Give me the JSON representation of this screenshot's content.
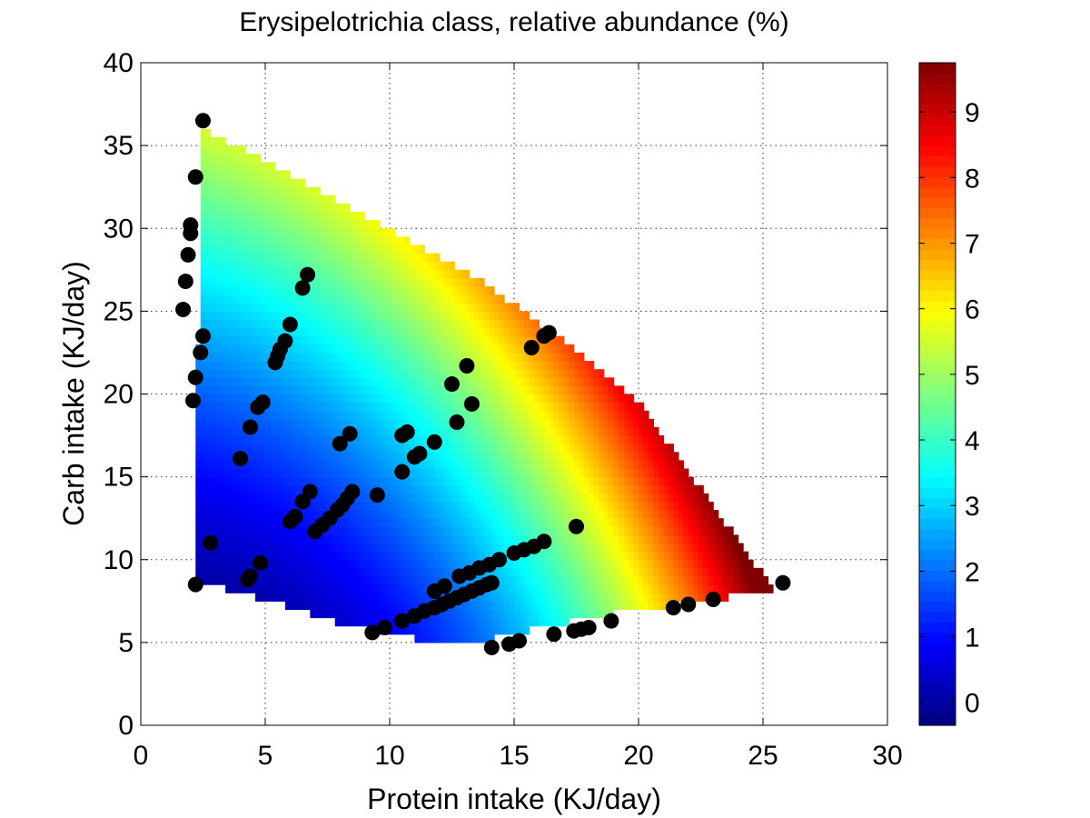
{
  "chart_data": {
    "type": "heatmap",
    "title": "Erysipelotrichia class, relative abundance (%)",
    "xlabel": "Protein intake (KJ/day)",
    "ylabel": "Carb intake (KJ/day)",
    "xlim": [
      0,
      30
    ],
    "ylim": [
      0,
      40
    ],
    "xticks": [
      0,
      5,
      10,
      15,
      20,
      25,
      30
    ],
    "yticks": [
      0,
      5,
      10,
      15,
      20,
      25,
      30,
      35,
      40
    ],
    "grid": true,
    "colormap": "jet",
    "colorbar": {
      "range": [
        -0.35,
        9.75
      ],
      "ticks": [
        0,
        1,
        2,
        3,
        4,
        5,
        6,
        7,
        8,
        9
      ]
    },
    "surface_region": [
      [
        2.2,
        8.7
      ],
      [
        2.2,
        16.3
      ],
      [
        2.5,
        36.0
      ],
      [
        5.5,
        33.7
      ],
      [
        10.0,
        30.0
      ],
      [
        14.0,
        26.5
      ],
      [
        16.7,
        23.5
      ],
      [
        20.0,
        19.5
      ],
      [
        25.2,
        8.7
      ],
      [
        26.0,
        8.5
      ],
      [
        24.8,
        8.0
      ],
      [
        20.0,
        7.0
      ],
      [
        17.3,
        6.3
      ],
      [
        13.5,
        5.0
      ],
      [
        10.5,
        5.3
      ],
      [
        8.0,
        6.2
      ],
      [
        5.0,
        7.6
      ],
      [
        2.2,
        8.7
      ]
    ],
    "surface_model": "abundance (%) ≈ f(protein, carb) rising from ~0 in the low-protein / low-carb corner to ~9.7 at high protein (~25 KJ/day, ~9 KJ/day carb)",
    "observations": {
      "marker": "filled circle",
      "color": "#000000",
      "points": [
        [
          2.5,
          36.5
        ],
        [
          2.2,
          33.1
        ],
        [
          2.0,
          30.2
        ],
        [
          2.0,
          29.7
        ],
        [
          1.9,
          28.4
        ],
        [
          1.8,
          26.8
        ],
        [
          1.7,
          25.1
        ],
        [
          2.5,
          23.5
        ],
        [
          2.4,
          22.5
        ],
        [
          2.2,
          21.0
        ],
        [
          2.1,
          19.6
        ],
        [
          2.2,
          8.5
        ],
        [
          2.8,
          11.0
        ],
        [
          4.0,
          16.1
        ],
        [
          4.4,
          18.0
        ],
        [
          4.7,
          19.2
        ],
        [
          4.9,
          19.5
        ],
        [
          4.4,
          9.0
        ],
        [
          4.8,
          9.8
        ],
        [
          4.3,
          8.8
        ],
        [
          5.4,
          21.9
        ],
        [
          5.5,
          22.3
        ],
        [
          5.6,
          22.7
        ],
        [
          5.8,
          23.2
        ],
        [
          6.0,
          24.2
        ],
        [
          6.5,
          26.4
        ],
        [
          6.7,
          27.2
        ],
        [
          6.0,
          12.3
        ],
        [
          6.2,
          12.6
        ],
        [
          6.5,
          13.5
        ],
        [
          6.8,
          14.1
        ],
        [
          7.0,
          11.7
        ],
        [
          7.3,
          12.1
        ],
        [
          7.6,
          12.5
        ],
        [
          7.9,
          13.0
        ],
        [
          8.1,
          13.3
        ],
        [
          8.3,
          13.7
        ],
        [
          8.5,
          14.1
        ],
        [
          8.0,
          17.0
        ],
        [
          8.4,
          17.6
        ],
        [
          9.5,
          13.9
        ],
        [
          9.3,
          5.6
        ],
        [
          9.8,
          5.9
        ],
        [
          10.5,
          15.3
        ],
        [
          10.5,
          17.5
        ],
        [
          10.7,
          17.7
        ],
        [
          11.0,
          16.2
        ],
        [
          11.2,
          16.4
        ],
        [
          11.8,
          17.1
        ],
        [
          10.5,
          6.3
        ],
        [
          11.0,
          6.6
        ],
        [
          11.4,
          6.9
        ],
        [
          11.8,
          7.1
        ],
        [
          12.1,
          7.3
        ],
        [
          12.4,
          7.5
        ],
        [
          12.7,
          7.7
        ],
        [
          13.0,
          7.9
        ],
        [
          13.3,
          8.1
        ],
        [
          13.6,
          8.3
        ],
        [
          13.9,
          8.5
        ],
        [
          14.1,
          8.6
        ],
        [
          11.8,
          8.1
        ],
        [
          12.2,
          8.4
        ],
        [
          12.8,
          9.0
        ],
        [
          13.2,
          9.2
        ],
        [
          13.6,
          9.5
        ],
        [
          14.0,
          9.7
        ],
        [
          14.4,
          10.0
        ],
        [
          15.0,
          10.4
        ],
        [
          15.4,
          10.6
        ],
        [
          15.8,
          10.8
        ],
        [
          16.2,
          11.1
        ],
        [
          12.5,
          20.6
        ],
        [
          12.7,
          18.3
        ],
        [
          13.1,
          21.7
        ],
        [
          13.3,
          19.4
        ],
        [
          14.1,
          4.7
        ],
        [
          14.8,
          4.9
        ],
        [
          15.2,
          5.1
        ],
        [
          15.7,
          22.8
        ],
        [
          16.2,
          23.5
        ],
        [
          16.4,
          23.7
        ],
        [
          16.6,
          5.5
        ],
        [
          17.5,
          12.0
        ],
        [
          17.4,
          5.7
        ],
        [
          17.7,
          5.8
        ],
        [
          18.0,
          5.9
        ],
        [
          18.9,
          6.3
        ],
        [
          21.4,
          7.1
        ],
        [
          22.0,
          7.3
        ],
        [
          23.0,
          7.6
        ],
        [
          25.8,
          8.6
        ]
      ]
    }
  }
}
